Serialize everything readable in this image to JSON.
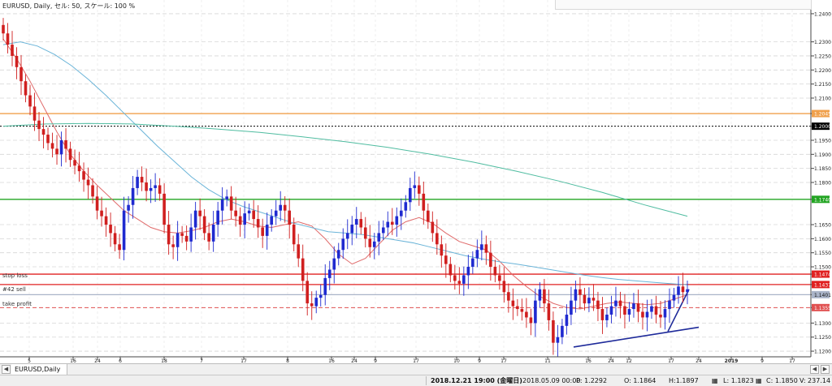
{
  "header": {
    "info": "EURUSD, Daily, セル: 50, スケール: 100 %"
  },
  "tab": {
    "label": "EURUSD,Daily"
  },
  "status": {
    "datetime": "2018.12.21 19:00 (金曜日)",
    "datetime2": "2018.05.09 00:00",
    "p": "P: 1.2292",
    "o": "O: 1.1864",
    "h": "H:1.1897",
    "l": "L: 1.1823",
    "c": "C: 1.1850",
    "v": "V: 237.14"
  },
  "levels": {
    "stop_loss": "stop loss",
    "sell": "#42 sell",
    "take_profit": "take profit"
  },
  "chart_data": {
    "type": "candlestick",
    "ylim": [
      1.118,
      1.242
    ],
    "y_ticks": [
      "1.2400",
      "1.2300",
      "1.2250",
      "1.2200",
      "1.2150",
      "1.2100",
      "1.2045",
      "1.2000",
      "1.1950",
      "1.1900",
      "1.1850",
      "1.1800",
      "1.1740",
      "1.1650",
      "1.1600",
      "1.1550",
      "1.1500",
      "1.1474",
      "1.1437",
      "1.1401",
      "1.1355",
      "1.1300",
      "1.1250",
      "1.1200"
    ],
    "x_labels": [
      "5",
      "16",
      "24",
      "6",
      "18",
      "7",
      "17",
      "8",
      "16",
      "24",
      "9",
      "17",
      "10",
      "9",
      "17",
      "11",
      "16",
      "24",
      "12",
      "17",
      "24",
      "2019",
      "9",
      "17"
    ],
    "horizontal_lines": [
      {
        "price": 1.2045,
        "label": "1.2045",
        "color": "#f0a04b",
        "style": "solid"
      },
      {
        "price": 1.2,
        "label": "1.2000",
        "color": "#000000",
        "style": "dotted"
      },
      {
        "price": 1.174,
        "label": "1.1740",
        "color": "#22a422",
        "style": "solid"
      },
      {
        "price": 1.1474,
        "label": "1.1474",
        "color": "#e02020",
        "style": "solid"
      },
      {
        "price": 1.1437,
        "label": "1.1437",
        "color": "#e02020",
        "style": "solid"
      },
      {
        "price": 1.1401,
        "label": "1.1401",
        "color": "#aab4c8",
        "style": "solid"
      },
      {
        "price": 1.1355,
        "label": "1.1355",
        "color": "#e05050",
        "style": "dashed"
      }
    ],
    "candles_close": [
      1.233,
      1.229,
      1.225,
      1.221,
      1.216,
      1.211,
      1.207,
      1.202,
      1.199,
      1.197,
      1.194,
      1.192,
      1.19,
      1.195,
      1.192,
      1.188,
      1.186,
      1.184,
      1.181,
      1.179,
      1.175,
      1.17,
      1.168,
      1.165,
      1.162,
      1.158,
      1.156,
      1.17,
      1.172,
      1.178,
      1.182,
      1.18,
      1.177,
      1.178,
      1.179,
      1.176,
      1.165,
      1.158,
      1.157,
      1.162,
      1.161,
      1.159,
      1.164,
      1.17,
      1.168,
      1.162,
      1.159,
      1.165,
      1.17,
      1.174,
      1.175,
      1.17,
      1.168,
      1.165,
      1.169,
      1.17,
      1.167,
      1.164,
      1.161,
      1.165,
      1.168,
      1.17,
      1.172,
      1.17,
      1.165,
      1.158,
      1.153,
      1.145,
      1.137,
      1.136,
      1.139,
      1.14,
      1.146,
      1.149,
      1.153,
      1.156,
      1.16,
      1.162,
      1.165,
      1.167,
      1.164,
      1.16,
      1.157,
      1.159,
      1.162,
      1.164,
      1.166,
      1.165,
      1.168,
      1.17,
      1.173,
      1.178,
      1.179,
      1.176,
      1.17,
      1.166,
      1.162,
      1.158,
      1.154,
      1.151,
      1.147,
      1.145,
      1.144,
      1.147,
      1.15,
      1.153,
      1.156,
      1.158,
      1.155,
      1.15,
      1.147,
      1.145,
      1.141,
      1.138,
      1.136,
      1.135,
      1.134,
      1.132,
      1.13,
      1.138,
      1.142,
      1.137,
      1.131,
      1.123,
      1.125,
      1.129,
      1.133,
      1.138,
      1.142,
      1.14,
      1.137,
      1.139,
      1.138,
      1.135,
      1.131,
      1.133,
      1.136,
      1.138,
      1.136,
      1.133,
      1.135,
      1.137,
      1.134,
      1.132,
      1.134,
      1.136,
      1.133,
      1.132,
      1.135,
      1.138,
      1.14,
      1.143,
      1.141,
      1.142
    ],
    "series": [
      {
        "type": "ema_fast",
        "color": "#e06a6a",
        "values": [
          1.231,
          1.224,
          1.216,
          1.207,
          1.198,
          1.19,
          1.184,
          1.179,
          1.1745,
          1.17,
          1.167,
          1.164,
          1.1625,
          1.162,
          1.1628,
          1.164,
          1.166,
          1.167,
          1.166,
          1.1645,
          1.164,
          1.165,
          1.166,
          1.1645,
          1.16,
          1.1545,
          1.151,
          1.153,
          1.158,
          1.163,
          1.166,
          1.1675,
          1.1655,
          1.162,
          1.159,
          1.1575,
          1.156,
          1.152,
          1.147,
          1.143,
          1.1395,
          1.137,
          1.1355,
          1.135,
          1.136,
          1.137,
          1.1375,
          1.137,
          1.1365,
          1.137,
          1.1385,
          1.14
        ]
      },
      {
        "type": "ema_slow",
        "color": "#6ab4d8",
        "values": [
          1.229,
          1.23,
          1.2285,
          1.2255,
          1.2215,
          1.2165,
          1.211,
          1.205,
          1.199,
          1.193,
          1.1875,
          1.182,
          1.1775,
          1.174,
          1.1715,
          1.1695,
          1.1675,
          1.1655,
          1.164,
          1.1625,
          1.162,
          1.1615,
          1.1605,
          1.1595,
          1.1585,
          1.157,
          1.1555,
          1.154,
          1.1528,
          1.1518,
          1.151,
          1.15,
          1.149,
          1.148,
          1.147,
          1.1462,
          1.1455,
          1.145,
          1.1445,
          1.144,
          1.1436
        ]
      },
      {
        "type": "sma_long",
        "color": "#4fbca0",
        "values": [
          1.2,
          1.2008,
          1.201,
          1.2008,
          1.2,
          1.199,
          1.1978,
          1.1962,
          1.1945,
          1.1925,
          1.19,
          1.1872,
          1.184,
          1.1805,
          1.1765,
          1.172,
          1.168
        ]
      },
      {
        "type": "trendline",
        "color": "#1e2a9a",
        "values": [
          1.1215,
          1.1285
        ]
      },
      {
        "type": "trendline_short",
        "color": "#1e2a9a",
        "values": [
          1.127,
          1.142
        ]
      }
    ]
  }
}
